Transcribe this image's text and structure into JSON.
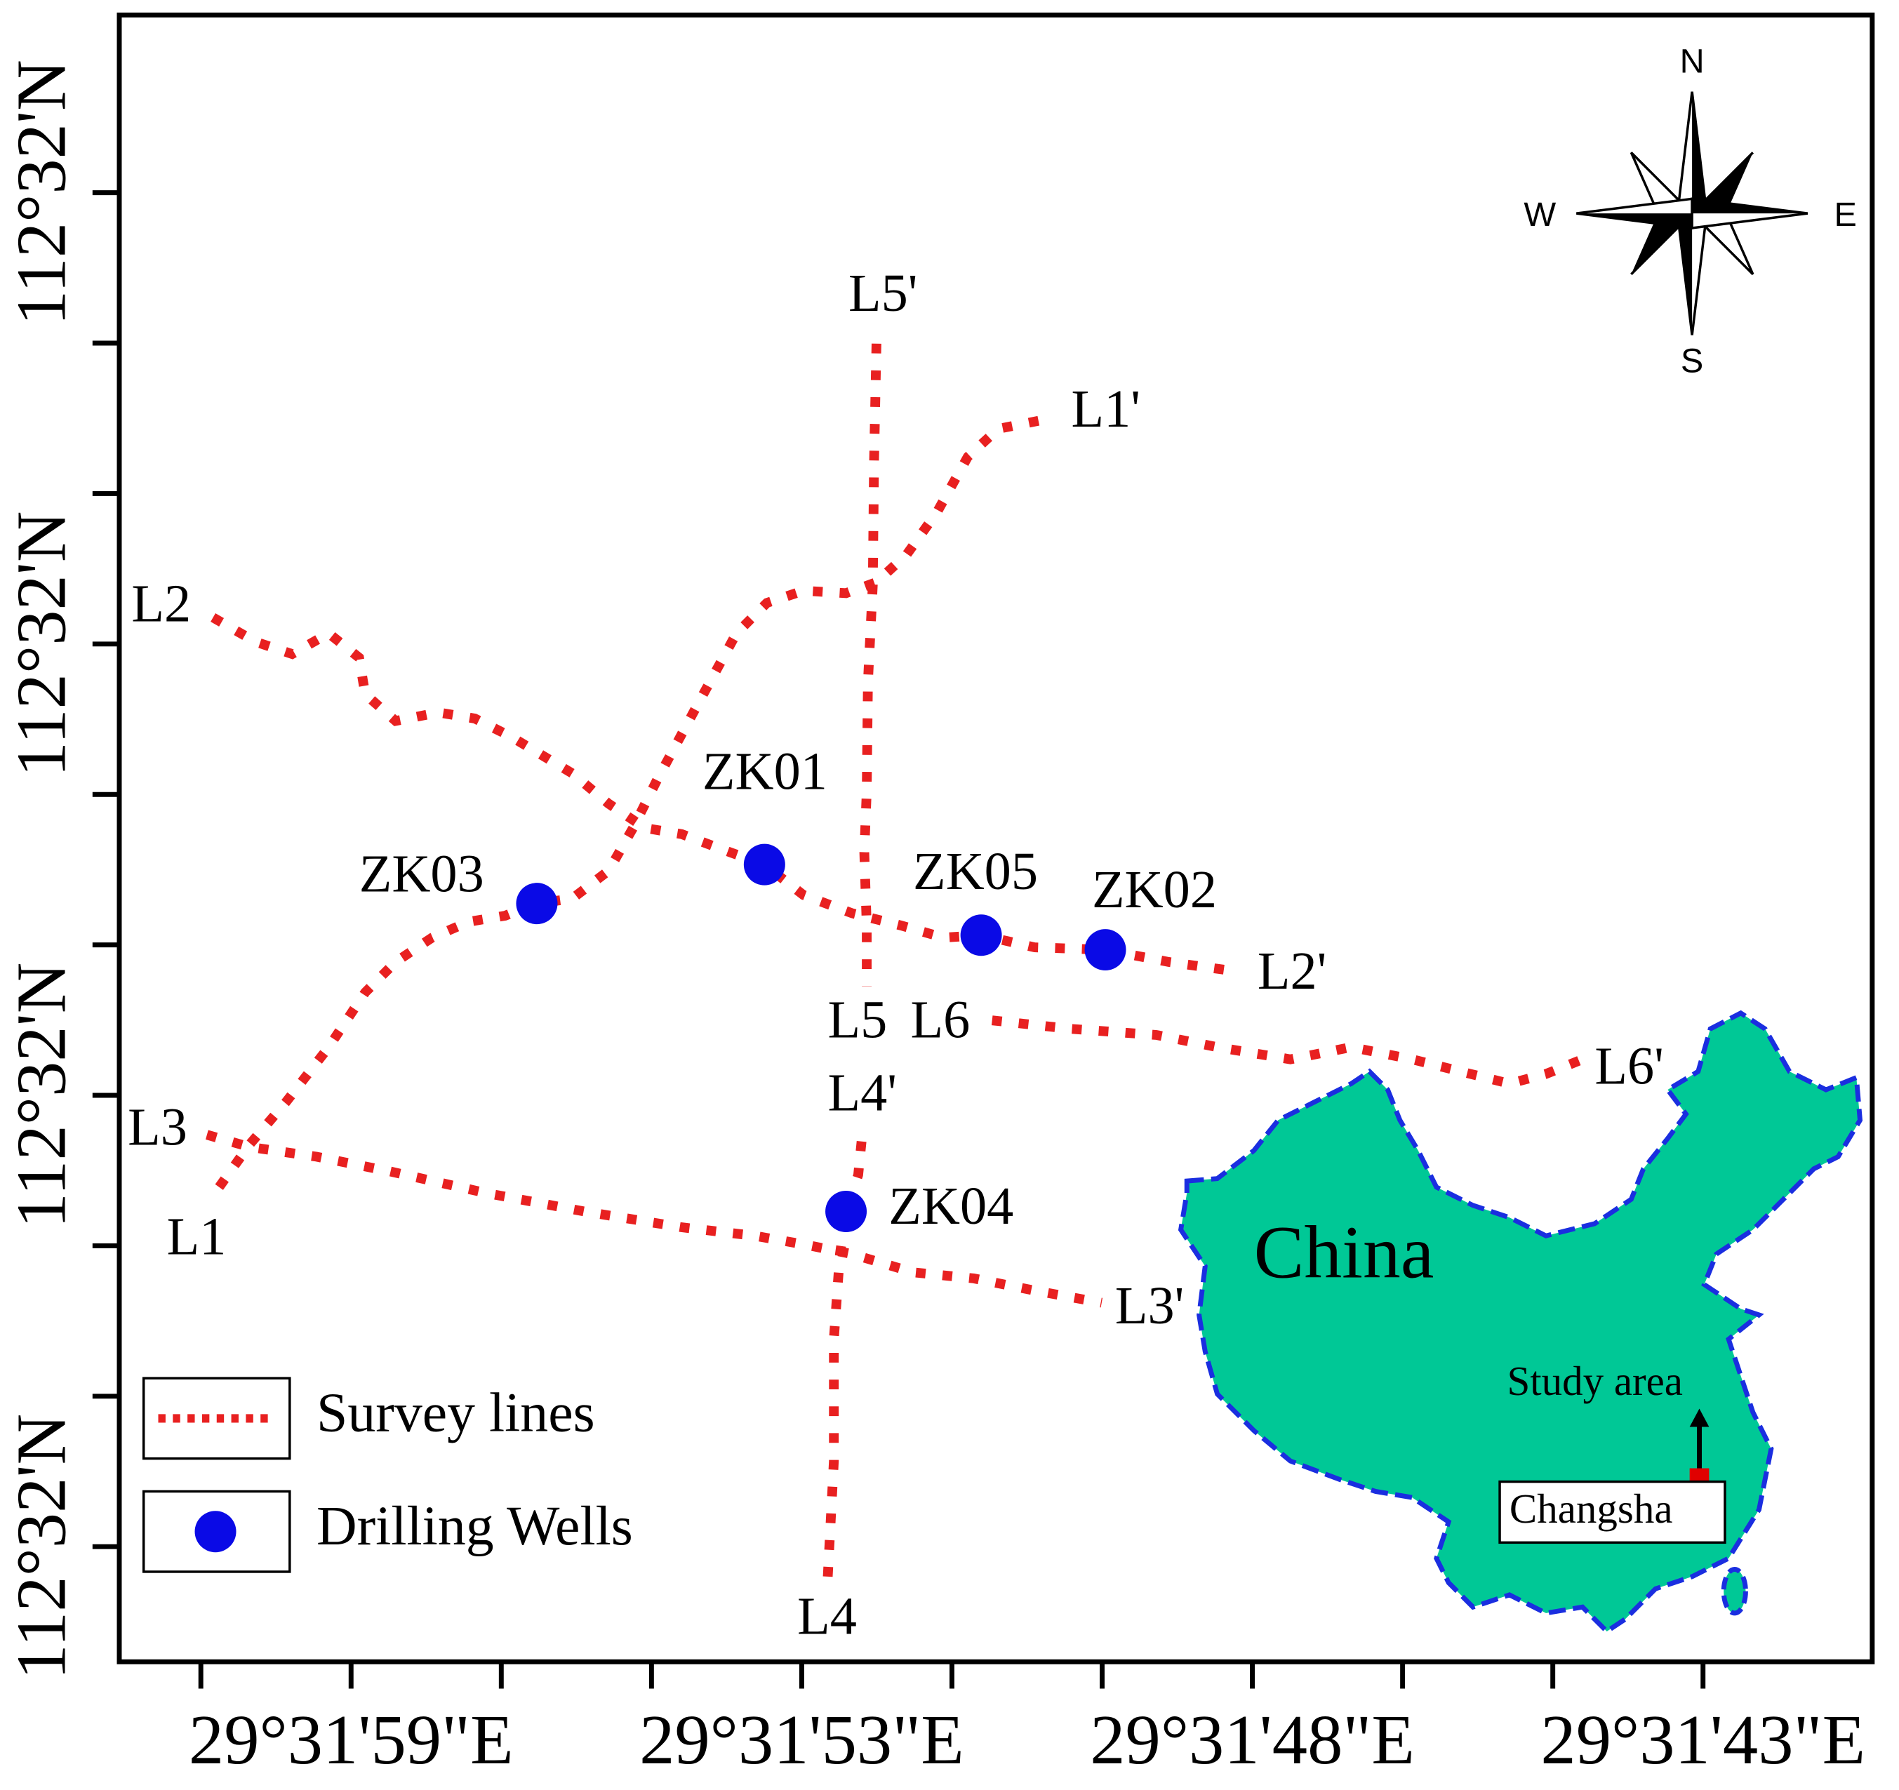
{
  "map": {
    "x_tick_labels": [
      "29°31'59\"E",
      "29°31'53\"E",
      "29°31'48\"E",
      "29°31'43\"E"
    ],
    "y_tick_labels": [
      "112°32'N",
      "112°32'N",
      "112°32'N",
      "112°32'N"
    ],
    "survey_lines": [
      {
        "start": "L1",
        "end": "L1'"
      },
      {
        "start": "L2",
        "end": "L2'"
      },
      {
        "start": "L3",
        "end": "L3'"
      },
      {
        "start": "L4",
        "end": "L4'"
      },
      {
        "start": "L5",
        "end": "L5'"
      },
      {
        "start": "L6",
        "end": "L6'"
      }
    ],
    "wells": [
      "ZK01",
      "ZK02",
      "ZK03",
      "ZK04",
      "ZK05"
    ],
    "legend": [
      "Survey lines",
      "Drilling Wells"
    ],
    "inset": {
      "country": "China",
      "marker": "Study area",
      "city": "Changsha"
    },
    "compass": {
      "north": "N",
      "south": "S",
      "east": "E",
      "west": "W"
    }
  }
}
